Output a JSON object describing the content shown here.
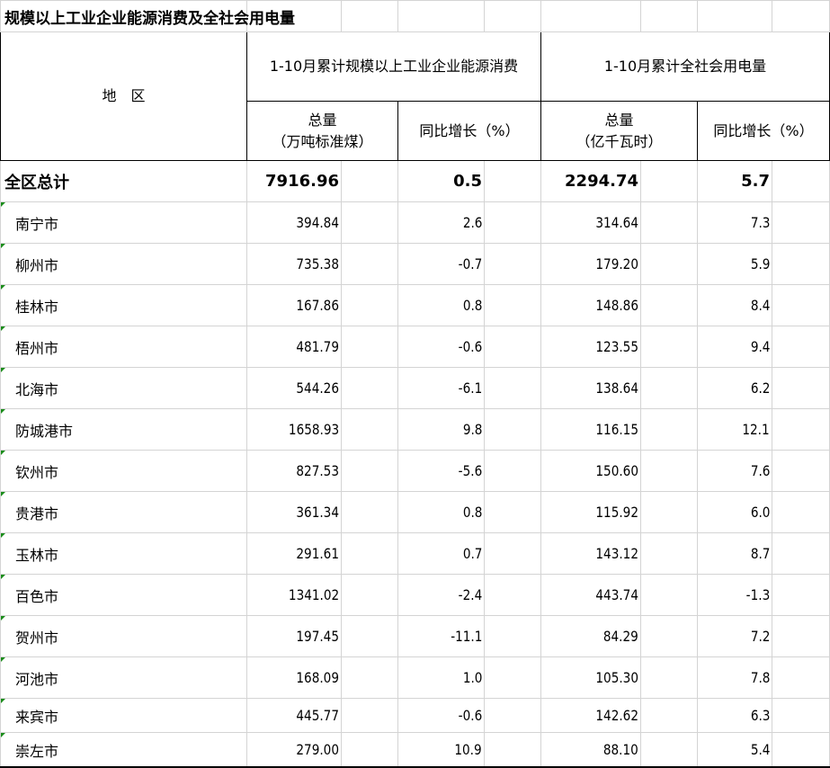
{
  "title": "规模以上工业企业能源消费及全社会用电量",
  "header": {
    "region": "地　区",
    "group1": "1-10月累计规模以上工业企业能源消费",
    "group2": "1-10月累计全社会用电量",
    "total1_line1": "总量",
    "total1_line2": "（万吨标准煤）",
    "growth1": "同比增长（%）",
    "total2_line1": "总量",
    "total2_line2": "（亿千瓦时）",
    "growth2": "同比增长（%）"
  },
  "total": {
    "name": "全区总计",
    "energy": "7916.96",
    "energy_growth": "0.5",
    "power": "2294.74",
    "power_growth": "5.7"
  },
  "rows": [
    {
      "name": "南宁市",
      "energy": "394.84",
      "energy_growth": "2.6",
      "power": "314.64",
      "power_growth": "7.3"
    },
    {
      "name": "柳州市",
      "energy": "735.38",
      "energy_growth": "-0.7",
      "power": "179.20",
      "power_growth": "5.9"
    },
    {
      "name": "桂林市",
      "energy": "167.86",
      "energy_growth": "0.8",
      "power": "148.86",
      "power_growth": "8.4"
    },
    {
      "name": "梧州市",
      "energy": "481.79",
      "energy_growth": "-0.6",
      "power": "123.55",
      "power_growth": "9.4"
    },
    {
      "name": "北海市",
      "energy": "544.26",
      "energy_growth": "-6.1",
      "power": "138.64",
      "power_growth": "6.2"
    },
    {
      "name": "防城港市",
      "energy": "1658.93",
      "energy_growth": "9.8",
      "power": "116.15",
      "power_growth": "12.1"
    },
    {
      "name": "钦州市",
      "energy": "827.53",
      "energy_growth": "-5.6",
      "power": "150.60",
      "power_growth": "7.6"
    },
    {
      "name": "贵港市",
      "energy": "361.34",
      "energy_growth": "0.8",
      "power": "115.92",
      "power_growth": "6.0"
    },
    {
      "name": "玉林市",
      "energy": "291.61",
      "energy_growth": "0.7",
      "power": "143.12",
      "power_growth": "8.7"
    },
    {
      "name": "百色市",
      "energy": "1341.02",
      "energy_growth": "-2.4",
      "power": "443.74",
      "power_growth": "-1.3"
    },
    {
      "name": "贺州市",
      "energy": "197.45",
      "energy_growth": "-11.1",
      "power": "84.29",
      "power_growth": "7.2"
    },
    {
      "name": "河池市",
      "energy": "168.09",
      "energy_growth": "1.0",
      "power": "105.30",
      "power_growth": "7.8"
    },
    {
      "name": "来宾市",
      "energy": "445.77",
      "energy_growth": "-0.6",
      "power": "142.62",
      "power_growth": "6.3"
    },
    {
      "name": "崇左市",
      "energy": "279.00",
      "energy_growth": "10.9",
      "power": "88.10",
      "power_growth": "5.4"
    }
  ]
}
